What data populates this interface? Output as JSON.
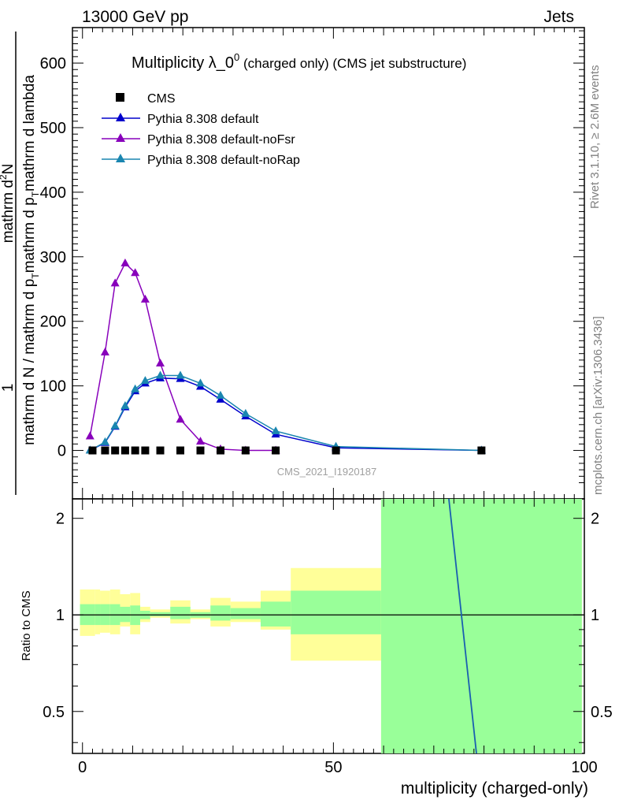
{
  "header": {
    "left": "13000 GeV pp",
    "right": "Jets"
  },
  "side_labels": {
    "rivet": "Rivet 3.1.10, ≥ 2.6M events",
    "mcplots": "mcplots.cern.ch [arXiv:1306.3436]"
  },
  "chart_data": {
    "type": "line",
    "title": {
      "main": "Multiplicity λ_0",
      "sup": "0",
      "suffix": " (charged only) (CMS jet substructure)"
    },
    "watermark": "CMS_2021_I1920187",
    "ylabel": {
      "line1": "mathrm d",
      "line1_sup": "2",
      "line1_tail": "N",
      "line2": "1",
      "line3": "mathrm d N / mathrm d p",
      "line3_sub": "T",
      "line3_tail": "mathrm d p",
      "line3_sub2": "T",
      "line3_tail2": "mathrm d lambda"
    },
    "xlabel": "multiplicity (charged-only)",
    "ratio_ylabel": "Ratio to CMS",
    "xlim": [
      -2,
      100
    ],
    "ylim": [
      -75,
      655
    ],
    "ratio_ylim": [
      0.37,
      2.3
    ],
    "x_ticks": [
      "0",
      "50",
      "100"
    ],
    "y_ticks": [
      "0",
      "100",
      "200",
      "300",
      "400",
      "500",
      "600"
    ],
    "ratio_ticks": [
      "0.5",
      "1",
      "2"
    ],
    "legend": {
      "position": "top-left"
    },
    "series": [
      {
        "name": "CMS",
        "color": "#000000",
        "marker": "square",
        "x": [
          2,
          4.5,
          6.5,
          8.5,
          10.5,
          12.5,
          15.5,
          19.5,
          23.5,
          27.5,
          32.5,
          38.5,
          50.5,
          79.5
        ],
        "y": [
          0,
          0,
          0,
          0,
          0,
          0,
          0,
          0,
          0,
          0,
          0,
          0,
          0,
          0
        ]
      },
      {
        "name": "Pythia 8.308 default",
        "color": "#0000cc",
        "marker": "triangle",
        "x": [
          1.5,
          4.5,
          6.5,
          8.5,
          10.5,
          12.5,
          15.5,
          19.5,
          23.5,
          27.5,
          32.5,
          38.5,
          50.5,
          79.5
        ],
        "y": [
          0,
          12,
          37,
          67,
          92,
          104,
          112,
          111,
          99,
          79,
          53,
          25,
          4,
          0
        ]
      },
      {
        "name": "Pythia 8.308 default-noFsr",
        "color": "#8800bb",
        "marker": "triangle",
        "x": [
          1.5,
          4.5,
          6.5,
          8.5,
          10.5,
          12.5,
          15.5,
          19.5,
          23.5,
          27.5,
          32.5,
          38.5
        ],
        "y": [
          22,
          152,
          259,
          290,
          275,
          234,
          135,
          48,
          14,
          2,
          0,
          0
        ]
      },
      {
        "name": "Pythia 8.308 default-noRap",
        "color": "#1a86b0",
        "marker": "triangle",
        "x": [
          1.5,
          4.5,
          6.5,
          8.5,
          10.5,
          12.5,
          15.5,
          19.5,
          23.5,
          27.5,
          32.5,
          38.5,
          50.5,
          79.5
        ],
        "y": [
          0,
          13,
          38,
          69,
          95,
          108,
          116,
          116,
          104,
          85,
          57,
          30,
          6,
          0
        ]
      }
    ],
    "ratio_bands": [
      {
        "x0": -0.5,
        "x1": 2.5,
        "y_lo": 0.86,
        "y_hi": 1.2,
        "g_lo": 0.93,
        "g_hi": 1.08
      },
      {
        "x0": 2.5,
        "x1": 3.5,
        "y_lo": 0.87,
        "y_hi": 1.2,
        "g_lo": 0.93,
        "g_hi": 1.08
      },
      {
        "x0": 3.5,
        "x1": 5.5,
        "y_lo": 0.88,
        "y_hi": 1.19,
        "g_lo": 0.93,
        "g_hi": 1.08
      },
      {
        "x0": 5.5,
        "x1": 7.5,
        "y_lo": 0.87,
        "y_hi": 1.2,
        "g_lo": 0.93,
        "g_hi": 1.08
      },
      {
        "x0": 7.5,
        "x1": 9.5,
        "y_lo": 0.92,
        "y_hi": 1.16,
        "g_lo": 0.95,
        "g_hi": 1.06
      },
      {
        "x0": 9.5,
        "x1": 11.5,
        "y_lo": 0.87,
        "y_hi": 1.17,
        "g_lo": 0.93,
        "g_hi": 1.07
      },
      {
        "x0": 11.5,
        "x1": 13.5,
        "y_lo": 0.95,
        "y_hi": 1.06,
        "g_lo": 0.97,
        "g_hi": 1.03
      },
      {
        "x0": 13.5,
        "x1": 17.5,
        "y_lo": 0.98,
        "y_hi": 1.04,
        "g_lo": 0.99,
        "g_hi": 1.02
      },
      {
        "x0": 17.5,
        "x1": 21.5,
        "y_lo": 0.94,
        "y_hi": 1.11,
        "g_lo": 0.97,
        "g_hi": 1.06
      },
      {
        "x0": 21.5,
        "x1": 25.5,
        "y_lo": 0.97,
        "y_hi": 1.04,
        "g_lo": 0.98,
        "g_hi": 1.02
      },
      {
        "x0": 25.5,
        "x1": 29.5,
        "y_lo": 0.92,
        "y_hi": 1.13,
        "g_lo": 0.96,
        "g_hi": 1.07
      },
      {
        "x0": 29.5,
        "x1": 35.5,
        "y_lo": 0.95,
        "y_hi": 1.1,
        "g_lo": 0.97,
        "g_hi": 1.05
      },
      {
        "x0": 35.5,
        "x1": 41.5,
        "y_lo": 0.9,
        "y_hi": 1.19,
        "g_lo": 0.92,
        "g_hi": 1.1
      },
      {
        "x0": 41.5,
        "x1": 59.5,
        "y_lo": 0.72,
        "y_hi": 1.4,
        "g_lo": 0.87,
        "g_hi": 1.19
      },
      {
        "x0": 59.5,
        "x1": 99.5,
        "y_lo": 0.37,
        "y_hi": 2.3,
        "g_lo": 0.37,
        "g_hi": 2.3
      }
    ],
    "ratio_line": {
      "x": [
        73,
        78.5
      ],
      "y": [
        2.3,
        0.37
      ],
      "color": "#1a5fb0"
    }
  }
}
